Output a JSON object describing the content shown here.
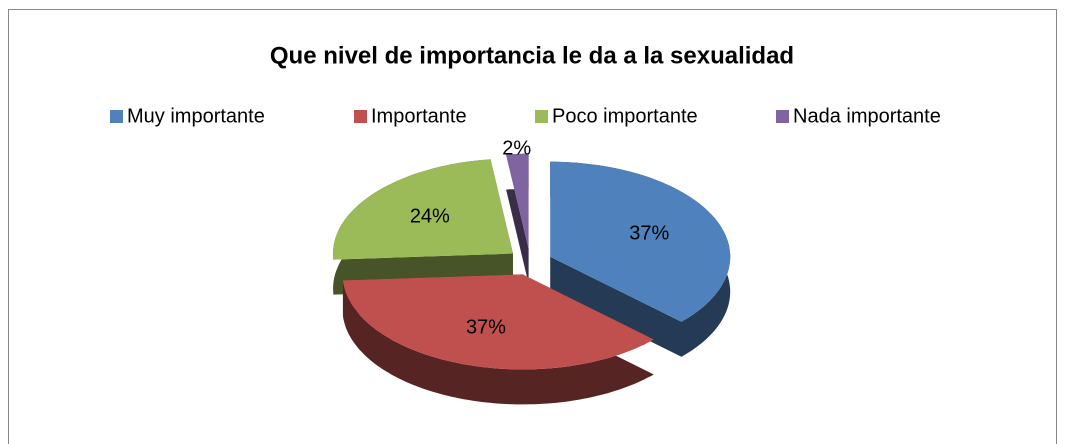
{
  "chart_data": {
    "type": "pie",
    "title": "Que nivel de importancia le da a la sexualidad",
    "categories": [
      "Muy importante",
      "Importante",
      "Poco importante",
      "Nada importante"
    ],
    "values": [
      37,
      37,
      24,
      2
    ],
    "value_labels": [
      "37%",
      "37%",
      "24%",
      "2%"
    ],
    "colors": [
      "#4f81bd",
      "#c0504d",
      "#9bbb59",
      "#8064a2"
    ],
    "legend": "top"
  }
}
